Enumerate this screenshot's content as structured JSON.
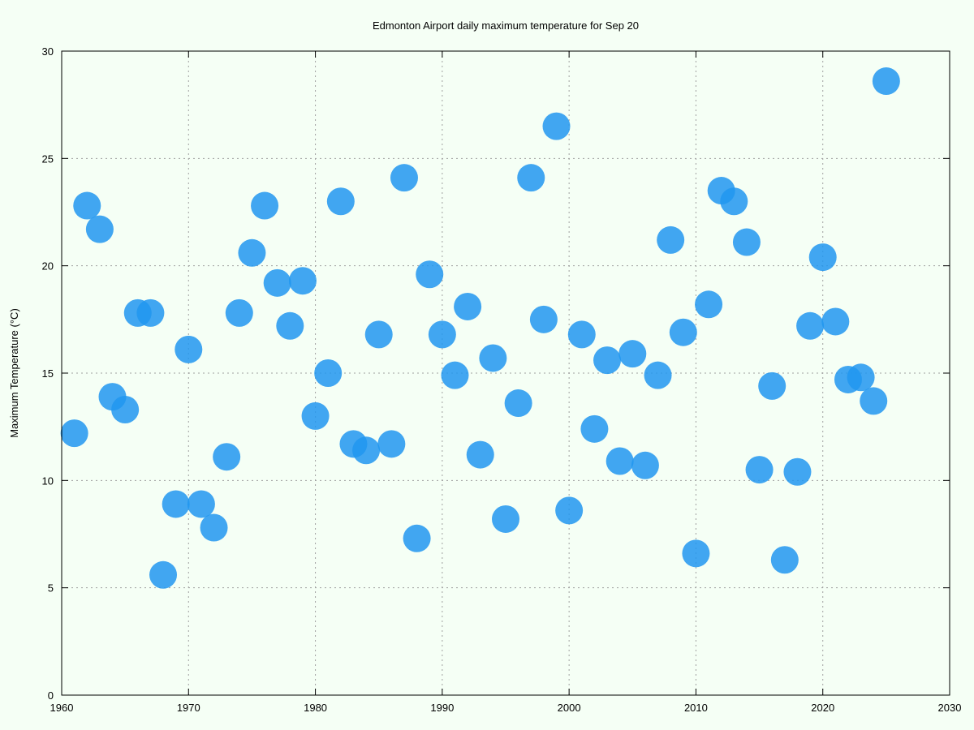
{
  "chart_data": {
    "type": "scatter",
    "title": "Edmonton Airport daily maximum temperature for Sep 20",
    "xlabel": "",
    "ylabel": "Maximum Temperature (°C)",
    "xlim": [
      1960,
      2030
    ],
    "ylim": [
      0,
      30
    ],
    "xticks": [
      1960,
      1970,
      1980,
      1990,
      2000,
      2010,
      2020,
      2030
    ],
    "yticks": [
      0,
      5,
      10,
      15,
      20,
      25,
      30
    ],
    "grid": true,
    "point_color": "#2196f0",
    "points": [
      {
        "x": 1961,
        "y": 12.2
      },
      {
        "x": 1962,
        "y": 22.8
      },
      {
        "x": 1963,
        "y": 21.7
      },
      {
        "x": 1964,
        "y": 13.9
      },
      {
        "x": 1965,
        "y": 13.3
      },
      {
        "x": 1966,
        "y": 17.8
      },
      {
        "x": 1967,
        "y": 17.8
      },
      {
        "x": 1968,
        "y": 5.6
      },
      {
        "x": 1969,
        "y": 8.9
      },
      {
        "x": 1970,
        "y": 16.1
      },
      {
        "x": 1971,
        "y": 8.9
      },
      {
        "x": 1972,
        "y": 7.8
      },
      {
        "x": 1973,
        "y": 11.1
      },
      {
        "x": 1974,
        "y": 17.8
      },
      {
        "x": 1975,
        "y": 20.6
      },
      {
        "x": 1976,
        "y": 22.8
      },
      {
        "x": 1977,
        "y": 19.2
      },
      {
        "x": 1978,
        "y": 17.2
      },
      {
        "x": 1979,
        "y": 19.3
      },
      {
        "x": 1980,
        "y": 13.0
      },
      {
        "x": 1981,
        "y": 15.0
      },
      {
        "x": 1982,
        "y": 23.0
      },
      {
        "x": 1983,
        "y": 11.7
      },
      {
        "x": 1984,
        "y": 11.4
      },
      {
        "x": 1985,
        "y": 16.8
      },
      {
        "x": 1986,
        "y": 11.7
      },
      {
        "x": 1987,
        "y": 24.1
      },
      {
        "x": 1988,
        "y": 7.3
      },
      {
        "x": 1989,
        "y": 19.6
      },
      {
        "x": 1990,
        "y": 16.8
      },
      {
        "x": 1991,
        "y": 14.9
      },
      {
        "x": 1992,
        "y": 18.1
      },
      {
        "x": 1993,
        "y": 11.2
      },
      {
        "x": 1994,
        "y": 15.7
      },
      {
        "x": 1995,
        "y": 8.2
      },
      {
        "x": 1996,
        "y": 13.6
      },
      {
        "x": 1997,
        "y": 24.1
      },
      {
        "x": 1998,
        "y": 17.5
      },
      {
        "x": 1999,
        "y": 26.5
      },
      {
        "x": 2000,
        "y": 8.6
      },
      {
        "x": 2001,
        "y": 16.8
      },
      {
        "x": 2002,
        "y": 12.4
      },
      {
        "x": 2003,
        "y": 15.6
      },
      {
        "x": 2004,
        "y": 10.9
      },
      {
        "x": 2005,
        "y": 15.9
      },
      {
        "x": 2006,
        "y": 10.7
      },
      {
        "x": 2007,
        "y": 14.9
      },
      {
        "x": 2008,
        "y": 21.2
      },
      {
        "x": 2009,
        "y": 16.9
      },
      {
        "x": 2010,
        "y": 6.6
      },
      {
        "x": 2011,
        "y": 18.2
      },
      {
        "x": 2012,
        "y": 23.5
      },
      {
        "x": 2013,
        "y": 23.0
      },
      {
        "x": 2014,
        "y": 21.1
      },
      {
        "x": 2015,
        "y": 10.5
      },
      {
        "x": 2016,
        "y": 14.4
      },
      {
        "x": 2017,
        "y": 6.3
      },
      {
        "x": 2018,
        "y": 10.4
      },
      {
        "x": 2019,
        "y": 17.2
      },
      {
        "x": 2020,
        "y": 20.4
      },
      {
        "x": 2021,
        "y": 17.4
      },
      {
        "x": 2022,
        "y": 14.7
      },
      {
        "x": 2023,
        "y": 14.8
      },
      {
        "x": 2024,
        "y": 13.7
      },
      {
        "x": 2025,
        "y": 28.6
      }
    ]
  }
}
